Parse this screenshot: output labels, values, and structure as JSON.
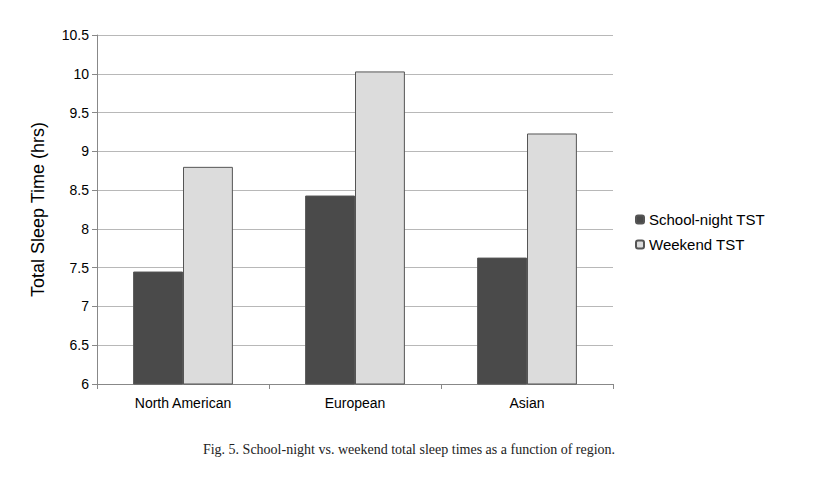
{
  "chart_data": {
    "type": "bar",
    "title": "Fig. 5. School-night vs. weekend total sleep times as a function of region.",
    "y_label": "Total Sleep Time (hrs)",
    "categories": [
      "North American",
      "European",
      "Asian"
    ],
    "series": [
      {
        "name": "School-night TST",
        "color": "#4a4a4a",
        "values": [
          7.45,
          8.43,
          7.63
        ]
      },
      {
        "name": "Weekend TST",
        "color": "#dcdcdc",
        "values": [
          8.8,
          10.03,
          9.23
        ]
      }
    ],
    "ylim": [
      6,
      10.5
    ],
    "yticks": [
      6,
      6.5,
      7,
      7.5,
      8,
      8.5,
      9,
      9.5,
      10,
      10.5
    ],
    "grid": true,
    "legend": "right"
  }
}
